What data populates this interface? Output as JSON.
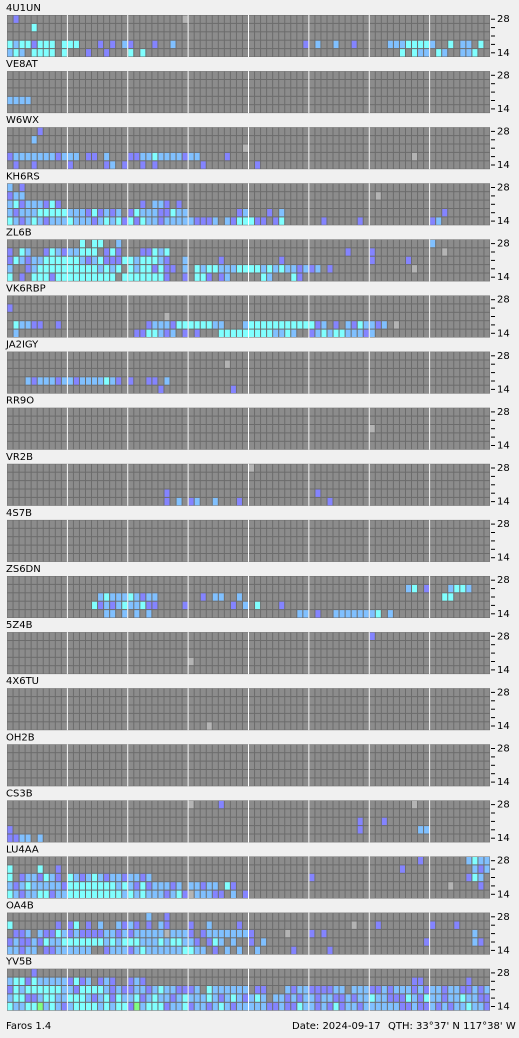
{
  "axis": {
    "top": "28",
    "bottom": "14"
  },
  "panels": [
    {
      "call": "4U1UN",
      "rows": [
        ".b...........................g....................................................",
        "....c...........................................................................",
        "................................................................................",
        "cmccbccc.ccc...b.b.mb...b..m.....................b.m..m..b.....mmmccccm..c.mm.c",
        "mcm.cccc.c...b..b...c.c..........................................c.cmm.cm..mmc."
      ]
    },
    {
      "call": "VE8AT",
      "rows": [
        "",
        "",
        "",
        "mmmm",
        ""
      ]
    },
    {
      "call": "W6WX",
      "rows": [
        ".....b",
        "....m",
        ".......................................g",
        "bmmmmmmmbmmm.bb.m...bbmmcmmmmbmm....b..............................g",
        ".b..b.....b.....bm.b..b.b.......b........b"
      ]
    },
    {
      "call": "KH6RS",
      "rows": [
        "m.b",
        "bmm..........................................................g",
        "mcbmmmbcb.............b.mmb.b",
        "mbmmmcccccmmmbcbmbm.bcmmmbbcmm........bm...b.m..........................b",
        "cmbmcmbmmmcmmmbmcmcbcbcmmbmmmmmbbbm.mbcccbb.bc......b.....b...........bm"
      ]
    },
    {
      "call": "ZL6B",
      "rows": [
        "............c.cc..m...................................................m",
        "b.cm..bcmbmmccc.bcb...bbcmc.............................b...b...........g",
        "bcmbmmccccccmbmcbbbccmcccmb..m.....b.........b..............b.....b",
        "m..bmccccccccccmcmc.cmccbcbb.m.cmccmmmccccmcmcmmbmbm.b.............g",
        "c.b.cccbcccccccccc.cccccccb..b.ccb.bm.....cm...cb"
      ]
    },
    {
      "call": "VK6RBP",
      "rows": [
        "",
        "b",
        "..........................g",
        ".cmmbb..b..............bmmmbccccccmm...mcccccccccccbm.b.mbcmmbm.g",
        ".m...................bbccmbm.b.b...cccccccccmmcm..bmcmccmmmbm"
      ]
    },
    {
      "call": "JA2IGY",
      "rows": [
        "",
        "....................................g",
        "",
        "...mbmmmbmmbmmmmcmb.b..bb.m",
        ".........................b...........b"
      ]
    },
    {
      "call": "RR9O",
      "rows": [
        "",
        "",
        "............................................................g",
        "",
        ""
      ]
    },
    {
      "call": "VR2B",
      "rows": [
        "........................................g",
        "",
        "",
        "..........................b........................b",
        "..........................b.m.bm..m...b..............b"
      ]
    },
    {
      "call": "4S7B",
      "rows": [
        "",
        "",
        "",
        "",
        ""
      ]
    },
    {
      "call": "ZS6DN",
      "rows": [
        "",
        "..................................................................mc.b...mccm",
        "...............mcmmmcmbmm.......b.mm..m.................................cc",
        "..............cbmbmcmmcbb....b.......b.m.c...b",
        "................mm.m.m.m........................mm.b..mmmmmmmc.m"
      ]
    },
    {
      "call": "5Z4B",
      "rows": [
        "............................................................b",
        "",
        "",
        "..............................g",
        ""
      ]
    },
    {
      "call": "4X6TU",
      "rows": [
        "",
        "",
        "",
        "",
        ".................................g"
      ]
    },
    {
      "call": "OH2B",
      "rows": [
        "",
        "",
        "",
        "",
        ""
      ]
    },
    {
      "call": "CS3B",
      "rows": [
        "..............................g....b...............................g",
        "",
        "..........................................................b...b",
        "b.........................................................b.........mm",
        "bbmm.m"
      ]
    },
    {
      "call": "LU4AA",
      "rows": [
        "....................................................................b.......mcmm",
        "c....c..b........................................................b...........mbmc",
        "c.bmmbcmb.cmbmcmbmmbmmbm..........................b.........................bcm.bm",
        "mbmcmmmmmbccccccccmcmbcbmmmbm.mmbmm.cb...................................g....b.mm",
        "cmbmmccbmmcccccccccmcmcmmmbmcbgmmmbb.m.b"
      ]
    },
    {
      "call": "OA4B",
      "rows": [
        ".......................m..b",
        "c.......b.bc.b.m..mbmb.b.mb...b..m....b..................g...b........b...b",
        ".bbm.mbbcmbmbbbbmmbmbmmmmmgmmmb.bmmmmmmmb.....g...b.b........................m",
        "bmbbmbcmmcccccccmcmcccmmmcmccmmb.bcm.m..b.m..........................b.......mb",
        "mmbmm.bbmmmmmm..bmmmbmcmmmmmmccmm.b.m.m..m.....b.....b"
      ]
    },
    {
      "call": "YV5B",
      "rows": [
        "....b",
        "mccbcmmmmmbcbm.bmb..bmb............................................bb.......b..",
        "bcmccccccmmbccccmbmbbmmbmcmmbbbm.cmmmmmm.bb...mbmmbbbbmm.mmmbbmbmmmbmbmmbmmbbmbm",
        "mccbbmccmmcccmbmcbcmmcbmcmmbmcmmmcmbmcmbmcm.mmbmbmmbmmbbmbmmcmmbbbcmbcmmbmmcmmbb",
        "cmmccymcmbmccccmcmccbymcccbmmcbmmbmcmbmmmmmbbmbbcmmbmbcbmmbmmmmmmbbmbbmbmbmmcmmbm"
      ]
    }
  ],
  "footer": {
    "app": "Faros 1.4",
    "date": "Date: 2024-09-17",
    "qth": "QTH: 33°37' N  117°38' W"
  }
}
